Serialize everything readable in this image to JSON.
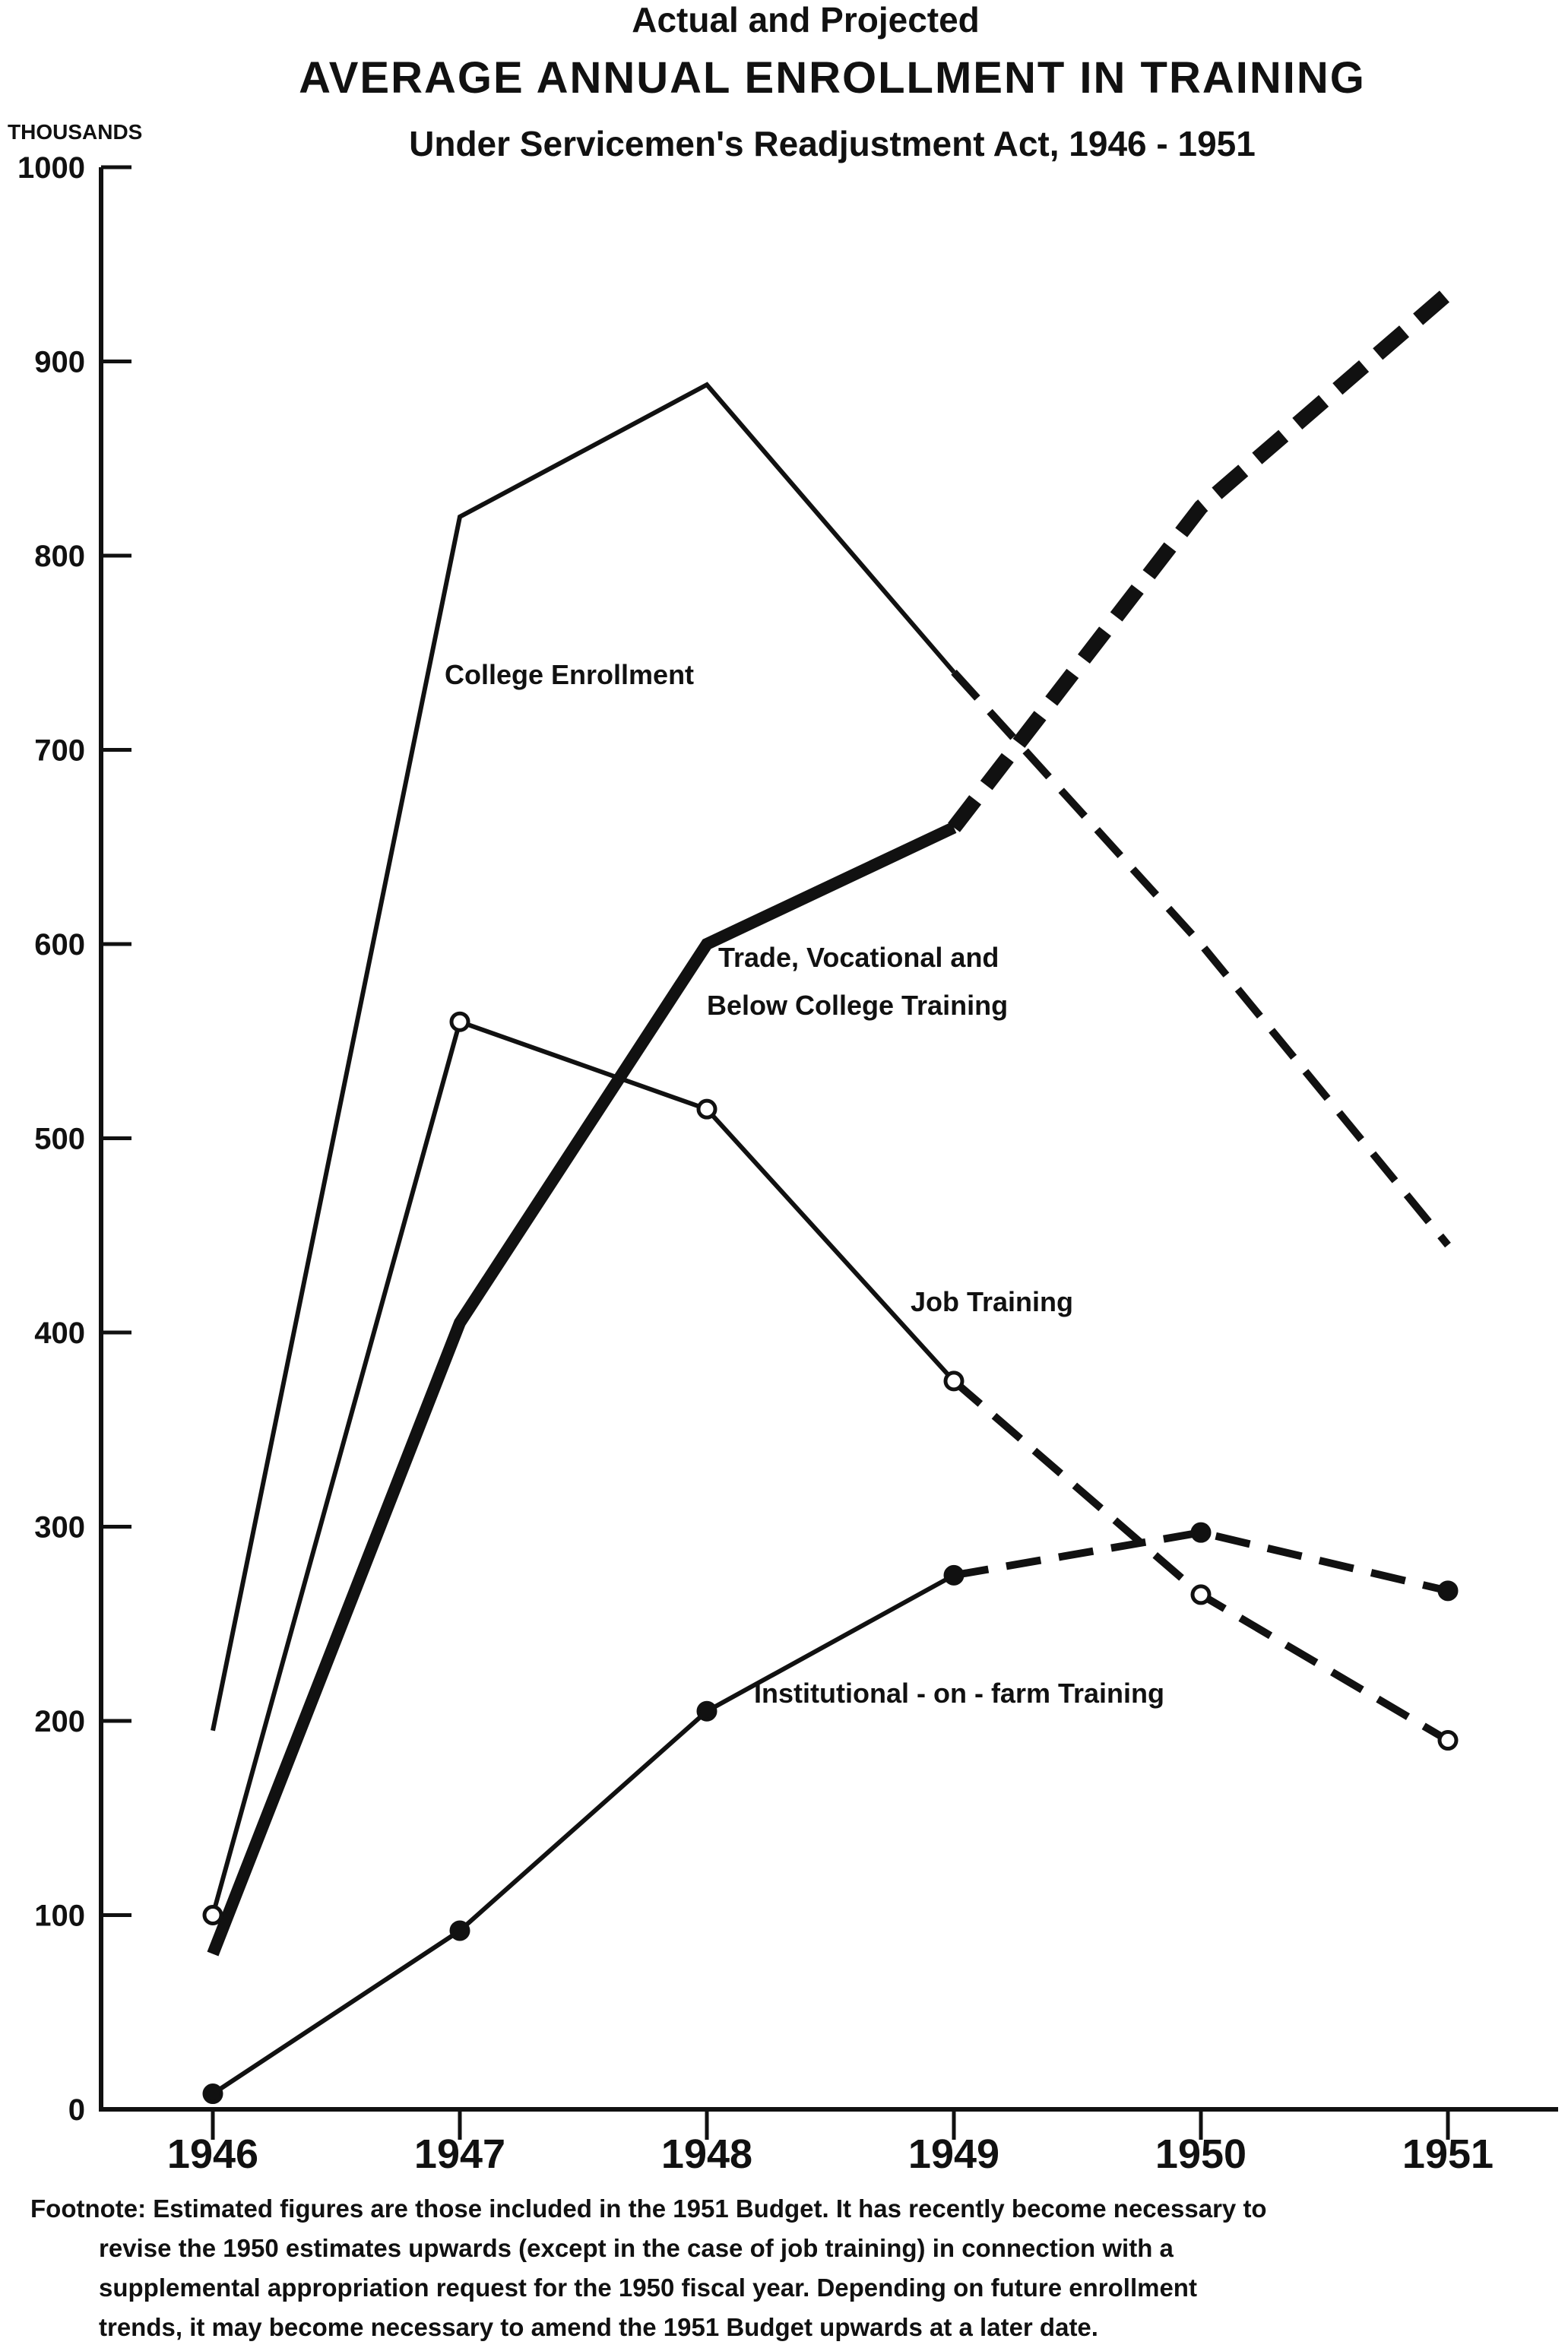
{
  "chart_data": {
    "type": "line",
    "title_pre": "Actual and Projected",
    "title": "AVERAGE ANNUAL ENROLLMENT IN TRAINING",
    "subtitle": "Under Servicemen's Readjustment Act, 1946 - 1951",
    "ylabel": "THOUSANDS",
    "ylim": [
      0,
      1000
    ],
    "yticks": [
      "0",
      "100",
      "200",
      "300",
      "400",
      "500",
      "600",
      "700",
      "800",
      "900",
      "1000"
    ],
    "categories": [
      "1946",
      "1947",
      "1948",
      "1949",
      "1950",
      "1951"
    ],
    "series": [
      {
        "name": "College Enrollment",
        "values": [
          195,
          820,
          888,
          740,
          600,
          445
        ],
        "actual_through": "1949",
        "line_style": "thin",
        "marker": "none",
        "label_lines": [
          "College Enrollment"
        ]
      },
      {
        "name": "Trade, Vocational and Below College Training",
        "values": [
          80,
          405,
          600,
          660,
          825,
          935
        ],
        "actual_through": "1949",
        "line_style": "thick",
        "marker": "none",
        "label_lines": [
          "Trade, Vocational and",
          "Below College Training"
        ]
      },
      {
        "name": "Job Training",
        "values": [
          100,
          560,
          515,
          375,
          265,
          190
        ],
        "actual_through": "1949",
        "line_style": "thin",
        "marker": "open-circle",
        "label_lines": [
          "Job Training"
        ]
      },
      {
        "name": "Institutional-on-farm Training",
        "values": [
          8,
          92,
          205,
          275,
          297,
          267
        ],
        "actual_through": "1949",
        "line_style": "thin",
        "marker": "filled-circle",
        "label_lines": [
          "Institutional - on - farm Training"
        ]
      }
    ],
    "legend": "inline labels",
    "grid": false
  },
  "footnote": {
    "lines": [
      "Footnote: Estimated figures are those included in the 1951 Budget. It has recently become necessary to",
      "revise the 1950 estimates upwards (except in the case of job training) in connection with a",
      "supplemental appropriation request for the 1950 fiscal year. Depending on future enrollment",
      "trends, it may become necessary to amend the 1951 Budget upwards at a later date."
    ]
  },
  "colors": {
    "ink": "#111111",
    "background": "#ffffff"
  }
}
